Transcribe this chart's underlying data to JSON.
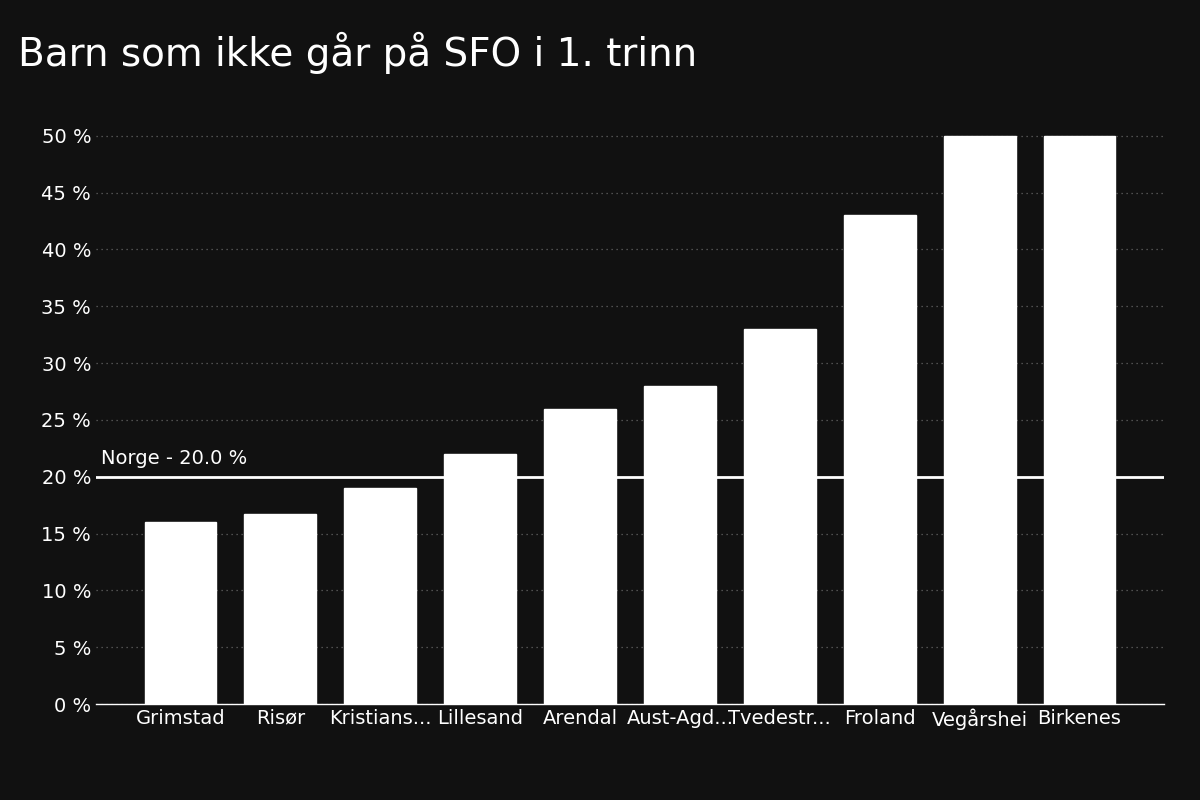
{
  "title": "Barn som ikke går på SFO i 1. trinn",
  "categories": [
    "Grimstad",
    "Risør",
    "Kristians...",
    "Lillesand",
    "Arendal",
    "Aust-Agd...",
    "Tvedestr...",
    "Froland",
    "Vegårshei",
    "Birkenes"
  ],
  "values": [
    0.16,
    0.167,
    0.19,
    0.22,
    0.26,
    0.28,
    0.33,
    0.43,
    0.5,
    0.5
  ],
  "bar_color": "#ffffff",
  "background_color": "#111111",
  "text_color": "#ffffff",
  "reference_line_value": 0.2,
  "reference_line_label": "Norge - 20.0 %",
  "ylim": [
    0,
    0.535
  ],
  "yticks": [
    0.0,
    0.05,
    0.1,
    0.15,
    0.2,
    0.25,
    0.3,
    0.35,
    0.4,
    0.45,
    0.5
  ],
  "ytick_labels": [
    "0 %",
    "5 %",
    "10 %",
    "15 %",
    "20 %",
    "25 %",
    "30 %",
    "35 %",
    "40 %",
    "45 %",
    "50 %"
  ],
  "title_fontsize": 28,
  "tick_fontsize": 14,
  "grid_color": "#ffffff",
  "grid_alpha": 0.35,
  "grid_linestyle": "dotted"
}
